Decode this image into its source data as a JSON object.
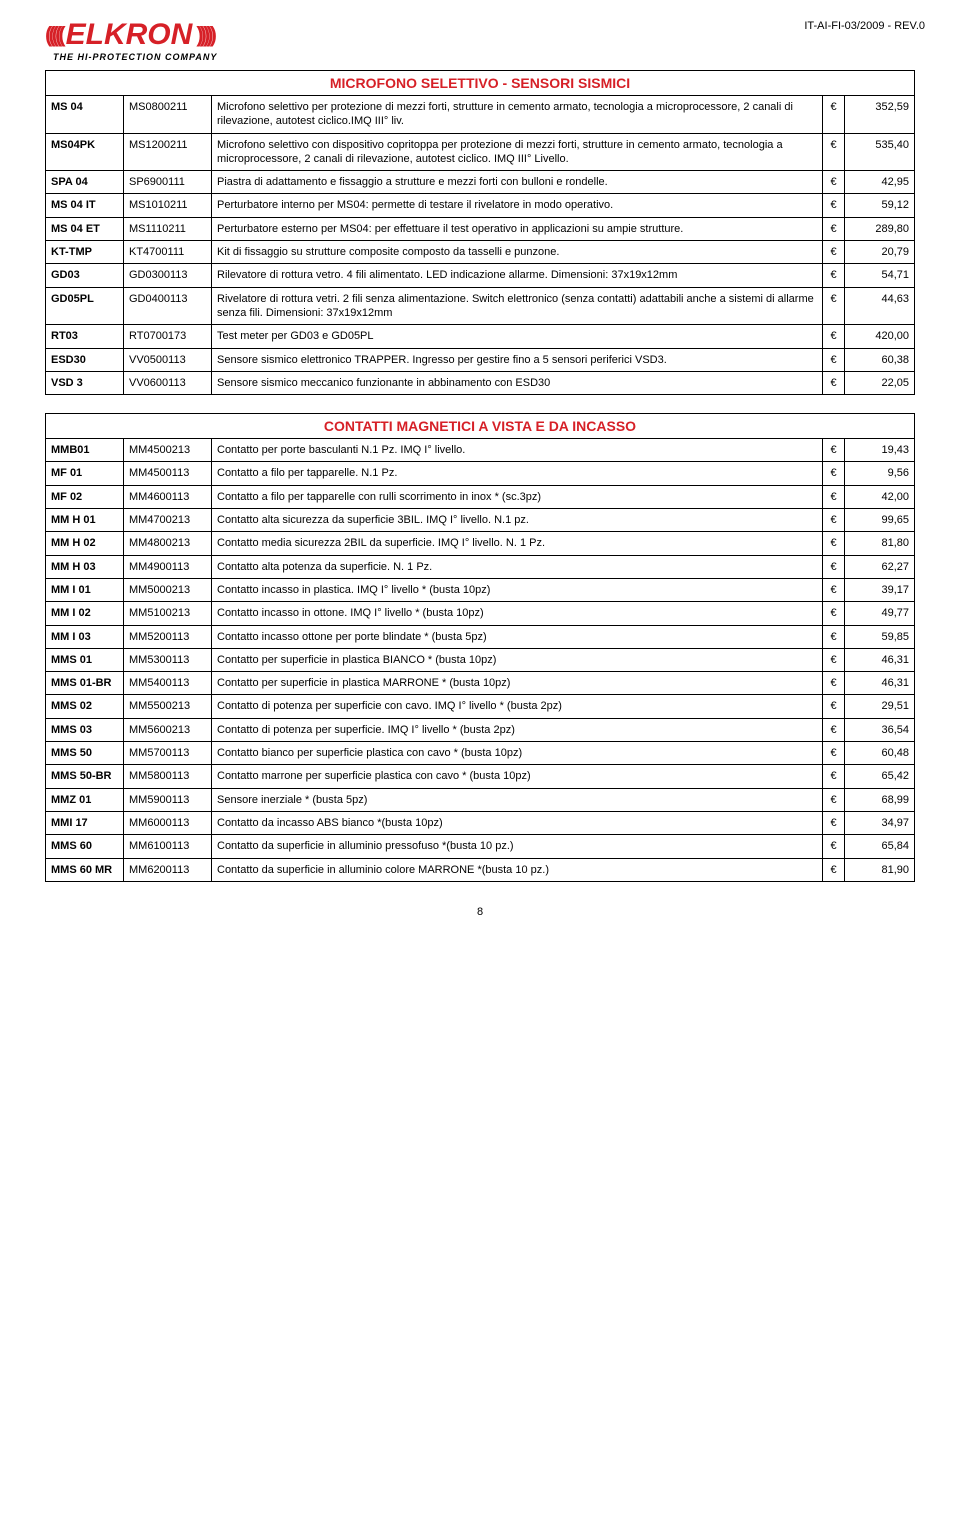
{
  "doc_ref": "IT-AI-FI-03/2009 - REV.0",
  "logo": {
    "brand": "ELKRON",
    "tagline": "THE HI-PROTECTION COMPANY"
  },
  "currency": "€",
  "page_number": "8",
  "sections": [
    {
      "title": "MICROFONO SELETTIVO - SENSORI SISMICI",
      "rows": [
        {
          "c1": "MS 04",
          "c2": "MS0800211",
          "desc": "Microfono selettivo per protezione di mezzi forti, strutture in cemento armato, tecnologia a microprocessore, 2 canali di rilevazione, autotest ciclico.IMQ III° liv.",
          "price": "352,59"
        },
        {
          "c1": "MS04PK",
          "c2": "MS1200211",
          "desc": "Microfono selettivo con dispositivo copritoppa per protezione di mezzi forti, strutture in cemento armato, tecnologia a microprocessore, 2 canali di rilevazione, autotest ciclico. IMQ III° Livello.",
          "price": "535,40"
        },
        {
          "c1": "SPA 04",
          "c2": "SP6900111",
          "desc": "Piastra di adattamento e fissaggio a strutture e mezzi forti con bulloni e rondelle.",
          "price": "42,95"
        },
        {
          "c1": "MS 04 IT",
          "c2": "MS1010211",
          "desc": "Perturbatore interno per MS04: permette di testare il rivelatore in modo operativo.",
          "price": "59,12"
        },
        {
          "c1": "MS 04 ET",
          "c2": "MS1110211",
          "desc": "Perturbatore esterno per MS04: per effettuare il test operativo in applicazioni su ampie strutture.",
          "price": "289,80"
        },
        {
          "c1": "KT-TMP",
          "c2": "KT4700111",
          "desc": "Kit di fissaggio su strutture composite composto da tasselli e punzone.",
          "price": "20,79"
        },
        {
          "c1": "GD03",
          "c2": "GD0300113",
          "desc": "Rilevatore di rottura vetro. 4 fili alimentato. LED indicazione allarme. Dimensioni: 37x19x12mm",
          "price": "54,71"
        },
        {
          "c1": "GD05PL",
          "c2": "GD0400113",
          "desc": "Rivelatore di rottura vetri. 2 fili senza alimentazione. Switch elettronico (senza contatti) adattabili anche a sistemi di allarme senza fili. Dimensioni: 37x19x12mm",
          "price": "44,63"
        },
        {
          "c1": "RT03",
          "c2": "RT0700173",
          "desc": "Test meter per GD03 e GD05PL",
          "price": "420,00"
        },
        {
          "c1": "ESD30",
          "c2": "VV0500113",
          "desc": "Sensore sismico elettronico TRAPPER. Ingresso per gestire fino a 5 sensori periferici VSD3.",
          "price": "60,38"
        },
        {
          "c1": "VSD 3",
          "c2": "VV0600113",
          "desc": "Sensore sismico meccanico funzionante in abbinamento con ESD30",
          "price": "22,05"
        }
      ]
    },
    {
      "title": "CONTATTI MAGNETICI A VISTA E DA INCASSO",
      "rows": [
        {
          "c1": "MMB01",
          "c2": "MM4500213",
          "desc": "Contatto per porte basculanti N.1 Pz. IMQ I° livello.",
          "price": "19,43"
        },
        {
          "c1": "MF 01",
          "c2": "MM4500113",
          "desc": "Contatto a filo per tapparelle. N.1 Pz.",
          "price": "9,56"
        },
        {
          "c1": "MF 02",
          "c2": "MM4600113",
          "desc": "Contatto a filo per tapparelle con rulli scorrimento in inox * (sc.3pz)",
          "price": "42,00"
        },
        {
          "c1": "MM H 01",
          "c2": "MM4700213",
          "desc": "Contatto alta sicurezza da superficie 3BIL. IMQ I° livello. N.1 pz.",
          "price": "99,65"
        },
        {
          "c1": "MM H 02",
          "c2": "MM4800213",
          "desc": "Contatto media sicurezza 2BIL da superficie. IMQ I° livello. N. 1 Pz.",
          "price": "81,80"
        },
        {
          "c1": "MM H 03",
          "c2": "MM4900113",
          "desc": "Contatto alta potenza da superficie. N. 1 Pz.",
          "price": "62,27"
        },
        {
          "c1": "MM I 01",
          "c2": "MM5000213",
          "desc": "Contatto incasso in plastica. IMQ I° livello * (busta 10pz)",
          "price": "39,17"
        },
        {
          "c1": "MM I 02",
          "c2": "MM5100213",
          "desc": "Contatto incasso in ottone. IMQ I° livello * (busta 10pz)",
          "price": "49,77"
        },
        {
          "c1": "MM I 03",
          "c2": "MM5200113",
          "desc": "Contatto incasso ottone per porte blindate * (busta 5pz)",
          "price": "59,85"
        },
        {
          "c1": "MMS 01",
          "c2": "MM5300113",
          "desc": "Contatto per superficie in plastica BIANCO * (busta 10pz)",
          "price": "46,31"
        },
        {
          "c1": "MMS 01-BR",
          "c2": "MM5400113",
          "desc": "Contatto per superficie in plastica MARRONE * (busta 10pz)",
          "price": "46,31"
        },
        {
          "c1": "MMS 02",
          "c2": "MM5500213",
          "desc": "Contatto di potenza per superficie con cavo. IMQ I° livello * (busta 2pz)",
          "price": "29,51"
        },
        {
          "c1": "MMS 03",
          "c2": "MM5600213",
          "desc": "Contatto di potenza per superficie. IMQ I° livello * (busta 2pz)",
          "price": "36,54"
        },
        {
          "c1": "MMS 50",
          "c2": "MM5700113",
          "desc": "Contatto bianco per superficie plastica con cavo * (busta 10pz)",
          "price": "60,48"
        },
        {
          "c1": "MMS 50-BR",
          "c2": "MM5800113",
          "desc": "Contatto marrone per superficie plastica con cavo * (busta 10pz)",
          "price": "65,42"
        },
        {
          "c1": "MMZ 01",
          "c2": "MM5900113",
          "desc": "Sensore inerziale * (busta 5pz)",
          "price": "68,99"
        },
        {
          "c1": "MMI 17",
          "c2": "MM6000113",
          "desc": "Contatto da incasso ABS bianco *(busta 10pz)",
          "price": "34,97"
        },
        {
          "c1": "MMS 60",
          "c2": "MM6100113",
          "desc": "Contatto da superficie in alluminio pressofuso *(busta 10 pz.)",
          "price": "65,84"
        },
        {
          "c1": "MMS 60 MR",
          "c2": "MM6200113",
          "desc": "Contatto da superficie in alluminio colore MARRONE *(busta 10 pz.)",
          "price": "81,90"
        }
      ]
    }
  ]
}
